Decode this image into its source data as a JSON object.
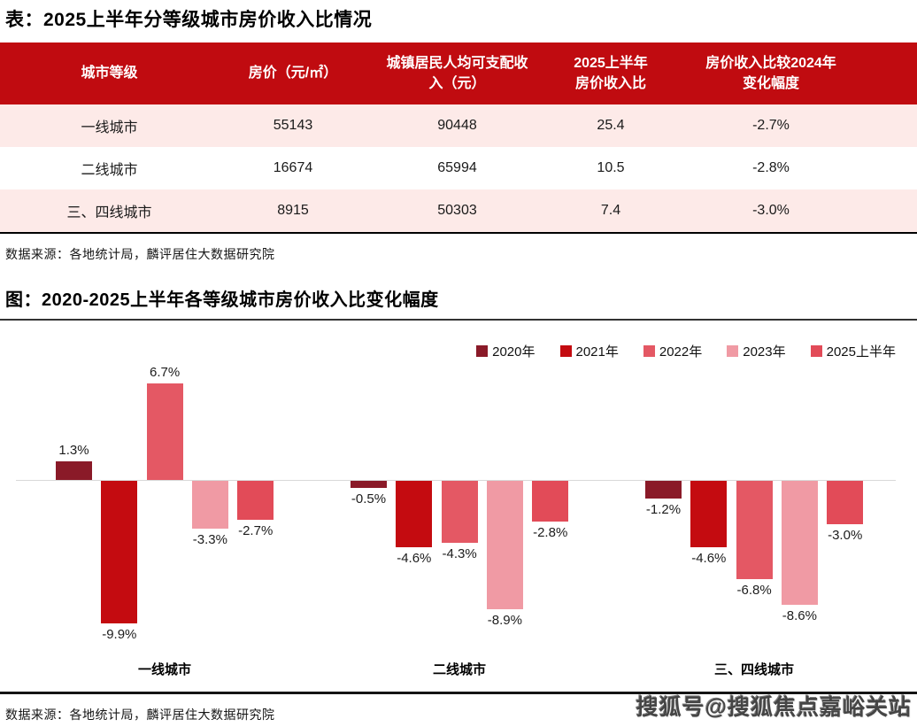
{
  "page": {
    "table_section": {
      "title": "表：2025上半年分等级城市房价收入比情况",
      "source": "数据来源：各地统计局，麟评居住大数据研究院"
    },
    "chart_section": {
      "title": "图：2020-2025上半年各等级城市房价收入比变化幅度",
      "source": "数据来源：各地统计局，麟评居住大数据研究院"
    },
    "watermark": "搜狐号@搜狐焦点嘉峪关站"
  },
  "table": {
    "header_bg": "#c00b10",
    "alt_row_bg": "#fdeae8",
    "headers": [
      "城市等级",
      "房价（元/㎡）",
      "城镇居民人均可支配收\n入（元）",
      "2025上半年\n房价收入比",
      "房价收入比较2024年\n变化幅度"
    ],
    "rows": [
      [
        "一线城市",
        "55143",
        "90448",
        "25.4",
        "-2.7%"
      ],
      [
        "二线城市",
        "16674",
        "65994",
        "10.5",
        "-2.8%"
      ],
      [
        "三、四线城市",
        "8915",
        "50303",
        "7.4",
        "-3.0%"
      ]
    ]
  },
  "chart_data": {
    "type": "bar",
    "title": "图：2020-2025上半年各等级城市房价收入比变化幅度",
    "unit": "%",
    "categories": [
      "一线城市",
      "二线城市",
      "三、四线城市"
    ],
    "series": [
      {
        "name": "2020年",
        "color": "#8a1a28",
        "values": [
          1.3,
          -0.5,
          -1.2
        ],
        "labels": [
          "1.3%",
          "-0.5%",
          "-1.2%"
        ]
      },
      {
        "name": "2021年",
        "color": "#c40b10",
        "values": [
          -9.9,
          -4.6,
          -4.6
        ],
        "labels": [
          "-9.9%",
          "-4.6%",
          "-4.6%"
        ]
      },
      {
        "name": "2022年",
        "color": "#e45864",
        "values": [
          6.7,
          -4.3,
          -6.8
        ],
        "labels": [
          "6.7%",
          "-4.3%",
          "-6.8%"
        ]
      },
      {
        "name": "2023年",
        "color": "#f09aa4",
        "values": [
          -3.3,
          -8.9,
          -8.6
        ],
        "labels": [
          "-3.3%",
          "-8.9%",
          "-8.6%"
        ]
      },
      {
        "name": "2025上半年",
        "color": "#e24b58",
        "values": [
          -2.7,
          -2.8,
          -3.0
        ],
        "labels": [
          "-2.7%",
          "-2.8%",
          "-3.0%"
        ]
      }
    ],
    "ylim": [
      -10.5,
      7.5
    ],
    "grid": false,
    "zero_line_color": "#d9d9d9",
    "legend_position": "top-right",
    "value_labels": true
  }
}
